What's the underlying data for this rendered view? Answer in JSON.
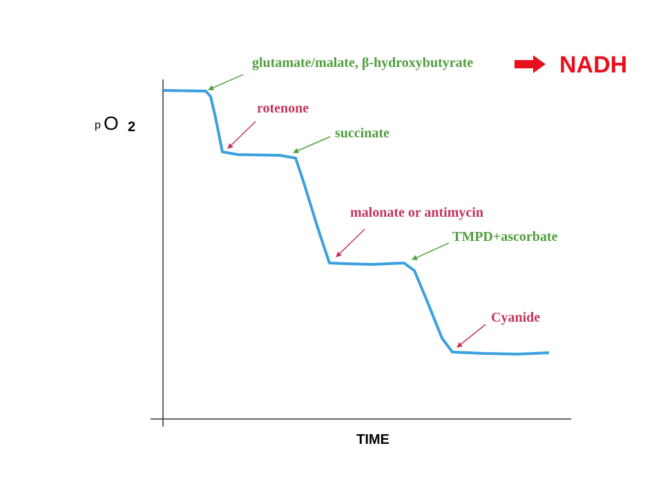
{
  "axis": {
    "y_label": {
      "p": "p",
      "main": "O",
      "sub": "2"
    },
    "x_label": "TIME"
  },
  "annotations": [
    {
      "text": "glutamate/malate, β-hydroxybutyrate"
    },
    {
      "text": "rotenone"
    },
    {
      "text": "succinate"
    },
    {
      "text": "malonate or antimycin"
    },
    {
      "text": "TMPD+ascorbate"
    },
    {
      "text": "Cyanide"
    }
  ],
  "result": "NADH"
}
